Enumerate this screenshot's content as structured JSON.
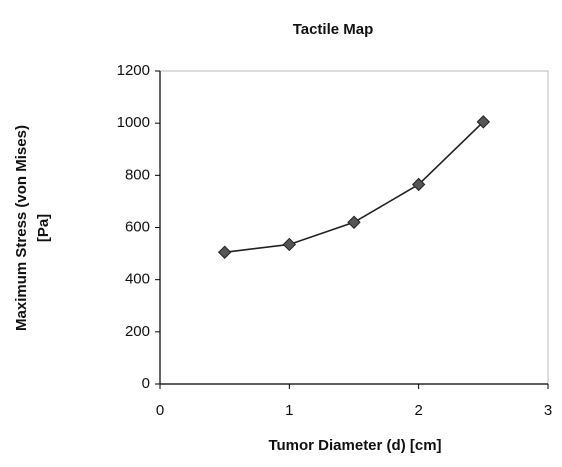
{
  "chart_data": {
    "type": "line",
    "title": "Tactile Map",
    "xlabel": "Tumor Diameter (d) [cm]",
    "ylabel": [
      "Maximum Stress (von Mises)",
      "[Pa]"
    ],
    "x": [
      0.5,
      1,
      1.5,
      2,
      2.5
    ],
    "series": [
      {
        "name": "Maximum Stress",
        "color": "#222222",
        "values": [
          505,
          535,
          620,
          765,
          1005
        ]
      }
    ],
    "xlim": [
      0,
      3
    ],
    "xticks": [
      0,
      1,
      2,
      3
    ],
    "ylim": [
      0,
      1200
    ],
    "yticks": [
      0,
      200,
      400,
      600,
      800,
      1000,
      1200
    ],
    "grid": false
  }
}
